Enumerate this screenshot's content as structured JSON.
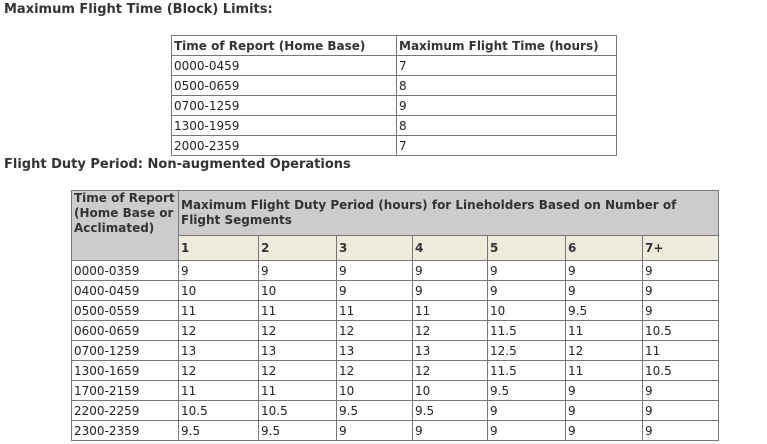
{
  "heading": "Maximum Flight Time (Block) Limits:",
  "block_table": {
    "columns": [
      "Time of Report (Home Base)",
      "Maximum Flight Time (hours)"
    ],
    "rows": [
      [
        "0000-0459",
        "7"
      ],
      [
        "0500-0659",
        "8"
      ],
      [
        "0700-1259",
        "9"
      ],
      [
        "1300-1959",
        "8"
      ],
      [
        "2000-2359",
        "7"
      ]
    ]
  },
  "duty_heading": "Flight Duty Period: Non-augmented Operations",
  "duty_table": {
    "row_header": "Time of Report (Home Base or Acclimated)",
    "group_header": "Maximum Flight Duty Period (hours) for Lineholders Based on Number of Flight Segments",
    "segments": [
      "1",
      "2",
      "3",
      "4",
      "5",
      "6",
      "7+"
    ],
    "rows": [
      [
        "0000-0359",
        "9",
        "9",
        "9",
        "9",
        "9",
        "9",
        "9"
      ],
      [
        "0400-0459",
        "10",
        "10",
        "9",
        "9",
        "9",
        "9",
        "9"
      ],
      [
        "0500-0559",
        "11",
        "11",
        "11",
        "11",
        "10",
        "9.5",
        "9"
      ],
      [
        "0600-0659",
        "12",
        "12",
        "12",
        "12",
        "11.5",
        "11",
        "10.5"
      ],
      [
        "0700-1259",
        "13",
        "13",
        "13",
        "13",
        "12.5",
        "12",
        "11"
      ],
      [
        "1300-1659",
        "12",
        "12",
        "12",
        "12",
        "11.5",
        "11",
        "10.5"
      ],
      [
        "1700-2159",
        "11",
        "11",
        "10",
        "10",
        "9.5",
        "9",
        "9"
      ],
      [
        "2200-2259",
        "10.5",
        "10.5",
        "9.5",
        "9.5",
        "9",
        "9",
        "9"
      ],
      [
        "2300-2359",
        "9.5",
        "9.5",
        "9",
        "9",
        "9",
        "9",
        "9"
      ]
    ]
  }
}
